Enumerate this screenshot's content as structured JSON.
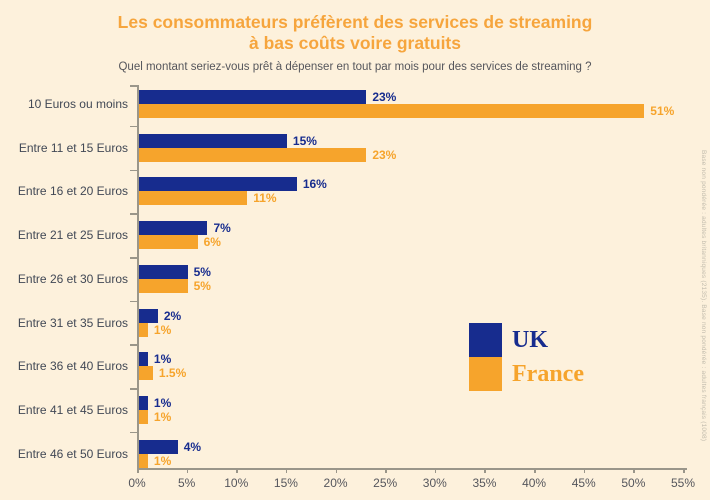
{
  "title": {
    "line1": "Les consommateurs préfèrent des services de streaming",
    "line2": "à bas coûts voire gratuits"
  },
  "subtitle": "Quel montant seriez-vous prêt à dépenser en tout par mois pour des services de streaming ?",
  "source_note": "Base non pondérée : adultes britanniques (2135). Base non pondérée : adultes français (1008)",
  "legend": {
    "uk_label": "UK",
    "france_label": "France"
  },
  "colors": {
    "background": "#fdf1dc",
    "uk": "#172c8e",
    "france": "#f6a42c",
    "title": "#f6a53d",
    "subtitle_text": "#55565c",
    "category_text": "#414855",
    "axis": "#9a968a"
  },
  "chart_data": {
    "type": "bar",
    "orientation": "horizontal",
    "title": "Les consommateurs préfèrent des services de streaming à bas coûts voire gratuits",
    "subtitle": "Quel montant seriez-vous prêt à dépenser en tout par mois pour des services de streaming ?",
    "categories": [
      "10 Euros ou moins",
      "Entre 11 et 15 Euros",
      "Entre 16 et 20 Euros",
      "Entre 21 et 25 Euros",
      "Entre 26 et 30 Euros",
      "Entre 31 et 35 Euros",
      "Entre 36 et 40 Euros",
      "Entre 41 et 45 Euros",
      "Entre 46 et 50 Euros"
    ],
    "series": [
      {
        "name": "UK",
        "color": "#172c8e",
        "values": [
          23,
          15,
          16,
          7,
          5,
          2,
          1,
          1,
          4
        ],
        "labels": [
          "23%",
          "15%",
          "16%",
          "7%",
          "5%",
          "2%",
          "1%",
          "1%",
          "4%"
        ]
      },
      {
        "name": "France",
        "color": "#f6a42c",
        "values": [
          51,
          23,
          11,
          6,
          5,
          1,
          1.5,
          1,
          1
        ],
        "labels": [
          "51%",
          "23%",
          "11%",
          "6%",
          "5%",
          "1%",
          "1.5%",
          "1%",
          "1%"
        ]
      }
    ],
    "xlim": [
      0,
      55
    ],
    "x_ticks": [
      "0%",
      "5%",
      "10%",
      "15%",
      "20%",
      "25%",
      "30%",
      "35%",
      "40%",
      "45%",
      "50%",
      "55%"
    ],
    "grid": false,
    "legend_position": "right-middle"
  }
}
